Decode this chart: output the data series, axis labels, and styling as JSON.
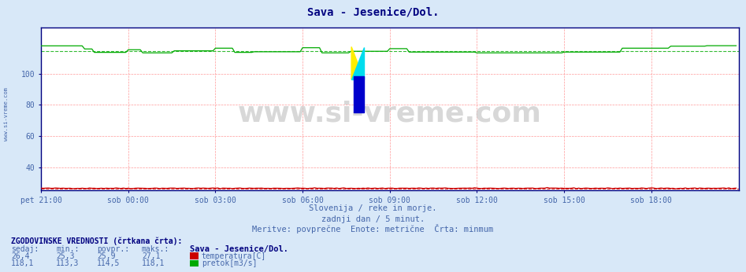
{
  "title": "Sava - Jesenice/Dol.",
  "title_color": "#000080",
  "title_fontsize": 10,
  "bg_color": "#d8e8f8",
  "plot_bg_color": "#ffffff",
  "grid_color": "#ff9999",
  "xlim": [
    0,
    288
  ],
  "ylim": [
    25,
    130
  ],
  "yticks": [
    40,
    60,
    80,
    100
  ],
  "xtick_labels": [
    "pet 21:00",
    "sob 00:00",
    "sob 03:00",
    "sob 06:00",
    "sob 09:00",
    "sob 12:00",
    "sob 15:00",
    "sob 18:00"
  ],
  "xtick_positions": [
    0,
    36,
    72,
    108,
    144,
    180,
    216,
    252
  ],
  "temp_avg": 25.9,
  "flow_avg": 114.5,
  "temp_line_color": "#cc0000",
  "flow_line_color": "#00aa00",
  "watermark_text": "www.si-vreme.com",
  "subtitle1": "Slovenija / reke in morje.",
  "subtitle2": "zadnji dan / 5 minut.",
  "subtitle3": "Meritve: povprečne  Enote: metrične  Črta: minmum",
  "subtitle_color": "#4466aa",
  "side_label": "www.si-vreme.com",
  "side_label_color": "#4466aa",
  "hist_title": "ZGODOVINSKE VREDNOSTI (črtkana črta):",
  "hist_col0_label": "sedaj:",
  "hist_col1_label": "min.:",
  "hist_col2_label": "povpr.:",
  "hist_col3_label": "maks.:",
  "station_label": "Sava - Jesenice/Dol.",
  "legend_items": [
    {
      "label": "temperatura[C]",
      "color": "#cc0000"
    },
    {
      "label": "pretok[m3/s]",
      "color": "#00aa00"
    }
  ],
  "hist_rows": [
    {
      "values": [
        "26,4",
        "25,3",
        "25,9",
        "27,1"
      ]
    },
    {
      "values": [
        "118,1",
        "113,3",
        "114,5",
        "118,1"
      ]
    }
  ],
  "n_points": 288
}
